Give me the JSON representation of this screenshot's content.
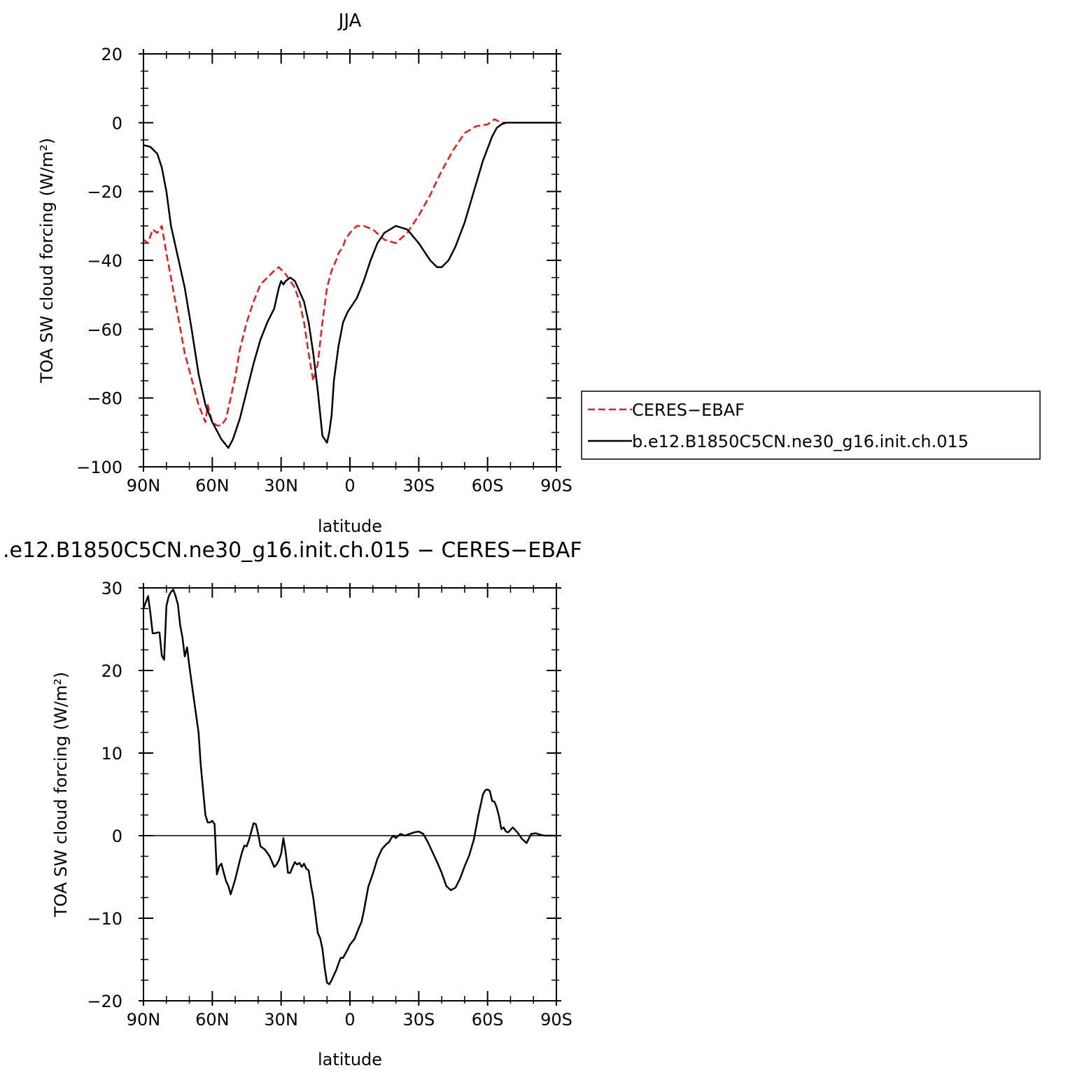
{
  "chart_data": [
    {
      "type": "line",
      "title": "JJA",
      "xlabel": "latitude",
      "ylabel": "TOA SW cloud forcing (W/m²)",
      "xlim": [
        90,
        -90
      ],
      "ylim": [
        -100,
        20
      ],
      "xticks": [
        90,
        60,
        30,
        0,
        -30,
        -60,
        -90
      ],
      "xtick_labels": [
        "90N",
        "60N",
        "30N",
        "0",
        "30S",
        "60S",
        "90S"
      ],
      "yticks": [
        20,
        0,
        -20,
        -40,
        -60,
        -80,
        -100
      ],
      "ytick_labels": [
        "20",
        "0",
        "−20",
        "−40",
        "−60",
        "−80",
        "−100"
      ],
      "grid": false,
      "legend_position": "right",
      "series": [
        {
          "name": "CERES−EBAF",
          "color": "#e41a1c",
          "dash": "dashed",
          "x": [
            90,
            88,
            86,
            84,
            82,
            80,
            78,
            75,
            72,
            70,
            66,
            63,
            62,
            60,
            58,
            56,
            54,
            52,
            50,
            48,
            45,
            42,
            39,
            36,
            33,
            31,
            28,
            26,
            24,
            22,
            20,
            18,
            16,
            14,
            12,
            10,
            8,
            6,
            5,
            3,
            2,
            0,
            -3,
            -6,
            -10,
            -15,
            -20,
            -25,
            -30,
            -35,
            -40,
            -45,
            -50,
            -55,
            -60,
            -63,
            -66,
            -70,
            -73,
            -76,
            -79,
            -83,
            -90
          ],
          "y": [
            -34,
            -35,
            -31,
            -32,
            -30,
            -38,
            -45,
            -56,
            -67,
            -72,
            -82,
            -87,
            -82,
            -87,
            -88,
            -88,
            -86,
            -80,
            -74,
            -66,
            -58,
            -52,
            -47,
            -45,
            -43,
            -42,
            -44,
            -46,
            -48,
            -52,
            -58,
            -67,
            -75,
            -70,
            -58,
            -48,
            -43,
            -40,
            -38,
            -36,
            -34,
            -32,
            -30,
            -30,
            -31,
            -34,
            -35,
            -32,
            -27,
            -21,
            -14,
            -8,
            -3,
            -1,
            -0.5,
            1,
            0,
            0,
            0,
            0,
            0,
            0,
            0
          ]
        },
        {
          "name": "b.e12.B1850C5CN.ne30_g16.init.ch.015",
          "color": "#000000",
          "dash": "solid",
          "x": [
            90,
            87,
            84,
            82,
            80,
            78,
            75,
            72,
            69,
            66,
            63,
            60,
            56,
            53,
            51,
            48,
            45,
            42,
            39,
            36,
            33,
            31,
            30,
            29,
            28,
            26,
            24,
            22,
            20,
            18,
            16,
            14,
            12,
            10,
            9,
            8,
            7,
            5,
            3,
            1,
            0,
            -3,
            -6,
            -9,
            -12,
            -15,
            -20,
            -25,
            -30,
            -35,
            -38,
            -40,
            -43,
            -46,
            -50,
            -54,
            -58,
            -62,
            -64,
            -66,
            -68,
            -72,
            -76,
            -80,
            -90
          ],
          "y": [
            -6.5,
            -7,
            -9,
            -13,
            -20,
            -30,
            -39,
            -48,
            -60,
            -73,
            -82,
            -87,
            -92,
            -94.5,
            -92,
            -86,
            -78,
            -70,
            -63,
            -58,
            -54,
            -48,
            -46,
            -47,
            -46,
            -45,
            -46,
            -49,
            -52,
            -58,
            -67,
            -78,
            -91,
            -93,
            -90,
            -85,
            -75,
            -65,
            -58,
            -55,
            -54,
            -51,
            -46,
            -40,
            -35,
            -32,
            -30,
            -31,
            -35,
            -40,
            -42,
            -42,
            -40,
            -36,
            -29,
            -20,
            -11,
            -4,
            -1.5,
            -0.5,
            0,
            0,
            0,
            0,
            0
          ]
        }
      ]
    },
    {
      "type": "line",
      "title": ".e12.B1850C5CN.ne30_g16.init.ch.015 − CERES−EBAF",
      "xlabel": "latitude",
      "ylabel": "TOA SW cloud forcing (W/m²)",
      "xlim": [
        90,
        -90
      ],
      "ylim": [
        -20,
        30
      ],
      "xticks": [
        90,
        60,
        30,
        0,
        -30,
        -60,
        -90
      ],
      "xtick_labels": [
        "90N",
        "60N",
        "30N",
        "0",
        "30S",
        "60S",
        "90S"
      ],
      "yticks": [
        30,
        20,
        10,
        0,
        -10,
        -20
      ],
      "ytick_labels": [
        "30",
        "20",
        "10",
        "0",
        "−10",
        "−20"
      ],
      "grid": false,
      "series": [
        {
          "color": "#000000",
          "dash": "solid",
          "x": [
            90,
            88,
            87,
            86,
            85,
            84,
            83,
            82,
            81,
            80,
            79,
            78,
            77,
            76,
            75,
            74,
            73,
            72,
            71,
            70,
            68,
            67,
            66,
            65,
            64,
            63,
            62,
            61,
            60,
            59,
            58,
            57,
            56,
            55,
            54,
            53,
            52,
            50,
            48,
            47,
            46,
            45,
            44,
            43,
            42,
            41,
            40,
            39,
            37,
            35,
            33,
            32,
            31,
            30,
            29,
            28,
            27,
            26,
            25,
            24,
            23,
            22,
            21,
            20,
            19,
            18,
            17,
            16,
            14,
            13,
            12,
            11,
            10,
            9,
            8,
            6,
            5,
            4,
            3,
            1,
            0,
            -2,
            -4,
            -5,
            -6,
            -8,
            -10,
            -12,
            -14,
            -16,
            -17,
            -18,
            -19,
            -20,
            -22,
            -24,
            -26,
            -28,
            -30,
            -32,
            -34,
            -36,
            -38,
            -40,
            -42,
            -44,
            -46,
            -48,
            -50,
            -52,
            -54,
            -56,
            -58,
            -59,
            -60,
            -61,
            -62,
            -63,
            -64,
            -65,
            -66,
            -67,
            -68,
            -69,
            -71,
            -73,
            -75,
            -77,
            -79,
            -81,
            -83,
            -85,
            -87,
            -90
          ],
          "y": [
            27.5,
            29,
            27,
            24.5,
            24.5,
            24.6,
            24.6,
            21.8,
            21.3,
            27.8,
            29,
            29.5,
            29.8,
            29,
            28,
            25.5,
            24,
            21.7,
            22.8,
            20.5,
            16.5,
            14.5,
            12.5,
            8.5,
            5.5,
            2.5,
            1.6,
            1.6,
            1.8,
            1.4,
            -4.7,
            -3.7,
            -3.4,
            -4.5,
            -5.5,
            -6.1,
            -7.1,
            -5.3,
            -3,
            -2,
            -1.2,
            -1.3,
            -0.5,
            0.5,
            1.5,
            1.4,
            0.2,
            -1.3,
            -1.7,
            -2.5,
            -3.8,
            -3.5,
            -3,
            -2.2,
            -0.3,
            -2,
            -4.5,
            -4.5,
            -3.8,
            -3.2,
            -3.5,
            -3.3,
            -3.8,
            -3.4,
            -4,
            -4.2,
            -6,
            -7.5,
            -11.8,
            -12.4,
            -13.7,
            -16,
            -17.8,
            -18,
            -17.5,
            -16.3,
            -15.5,
            -14.8,
            -14.8,
            -13.8,
            -13.2,
            -12.5,
            -11.1,
            -10.5,
            -9.2,
            -6.2,
            -4.6,
            -2.8,
            -1.6,
            -1,
            -0.8,
            -0.3,
            0,
            -0.3,
            0.2,
            0,
            0.2,
            0.4,
            0.5,
            0.2,
            -0.8,
            -2,
            -3.2,
            -4.5,
            -6.1,
            -6.6,
            -6.3,
            -5.2,
            -3.7,
            -2.4,
            -0.5,
            2.5,
            5,
            5.5,
            5.6,
            5.4,
            4.2,
            4.1,
            3.4,
            2.3,
            0.8,
            1,
            0.5,
            0.4,
            1,
            0.4,
            -0.4,
            -0.9,
            0.2,
            0.3,
            0.1,
            0,
            0,
            0
          ]
        }
      ]
    }
  ]
}
